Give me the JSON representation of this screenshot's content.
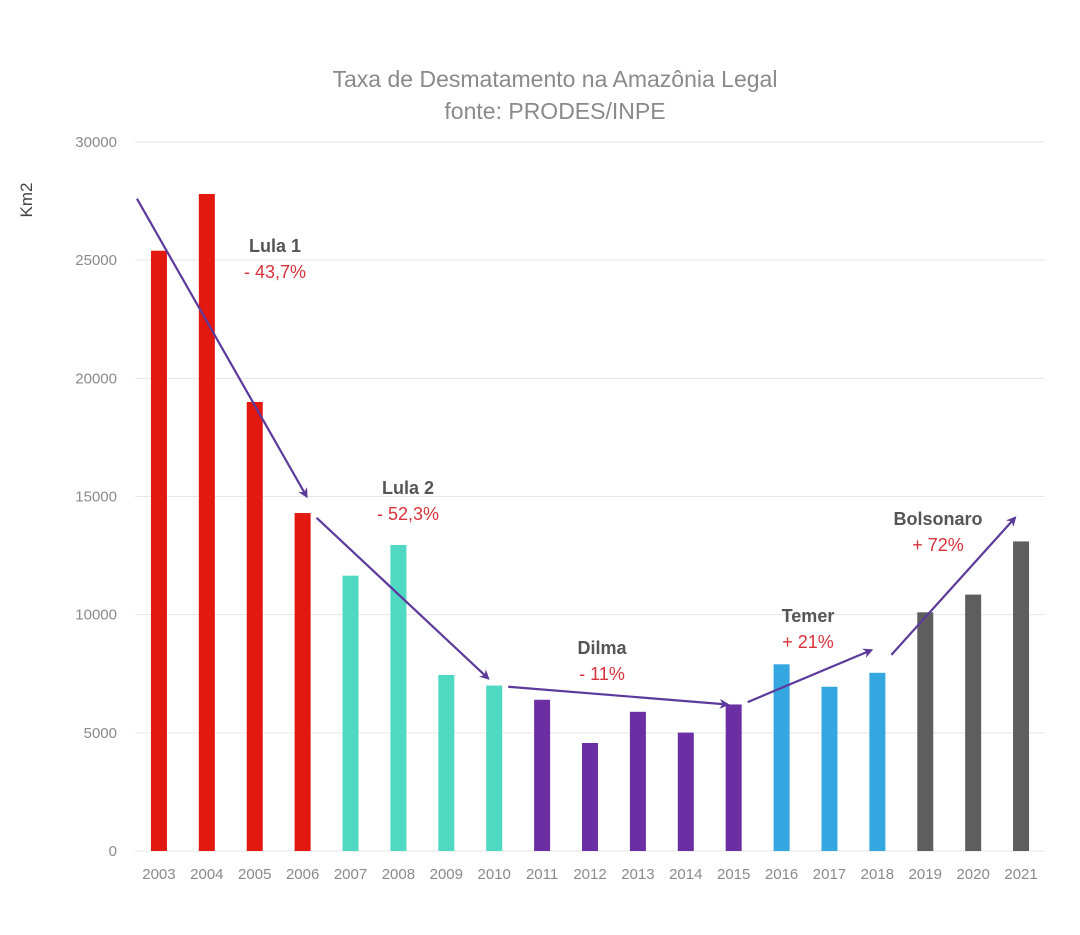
{
  "chart_data": {
    "type": "bar",
    "title": "Taxa de Desmatamento na Amazônia Legal",
    "subtitle": "fonte: PRODES/INPE",
    "ylabel": "Km2",
    "xlabel": "",
    "ylim": [
      0,
      30000
    ],
    "yticks": [
      0,
      5000,
      10000,
      15000,
      20000,
      25000,
      30000
    ],
    "grid": true,
    "categories": [
      "2003",
      "2004",
      "2005",
      "2006",
      "2007",
      "2008",
      "2009",
      "2010",
      "2011",
      "2012",
      "2013",
      "2014",
      "2015",
      "2016",
      "2017",
      "2018",
      "2019",
      "2020",
      "2021"
    ],
    "values": [
      25400,
      27800,
      19000,
      14300,
      11650,
      12950,
      7450,
      7000,
      6400,
      4570,
      5890,
      5010,
      6200,
      7900,
      6950,
      7540,
      10100,
      10850,
      13100
    ],
    "colors": [
      "#e3180f",
      "#e3180f",
      "#e3180f",
      "#e3180f",
      "#4fd9c3",
      "#4fd9c3",
      "#4fd9c3",
      "#4fd9c3",
      "#6b2fa3",
      "#6b2fa3",
      "#6b2fa3",
      "#6b2fa3",
      "#6b2fa3",
      "#35a7e0",
      "#35a7e0",
      "#35a7e0",
      "#5e5e5e",
      "#5e5e5e",
      "#5e5e5e"
    ],
    "annotations": [
      {
        "name": "Lula 1",
        "change": "- 43,7%",
        "arrow_from": [
          "2003",
          27600
        ],
        "arrow_to": [
          "2006",
          15000
        ]
      },
      {
        "name": "Lula 2",
        "change": "- 52,3%",
        "arrow_from": [
          "2006",
          14100
        ],
        "arrow_to": [
          "2010",
          7300
        ]
      },
      {
        "name": "Dilma",
        "change": "- 11%",
        "arrow_from": [
          "2010",
          6950
        ],
        "arrow_to": [
          "2015",
          6200
        ]
      },
      {
        "name": "Temer",
        "change": "+ 21%",
        "arrow_from": [
          "2015",
          6300
        ],
        "arrow_to": [
          "2018",
          8500
        ]
      },
      {
        "name": "Bolsonaro",
        "change": "+ 72%",
        "arrow_from": [
          "2018",
          8300
        ],
        "arrow_to": [
          "2021",
          14100
        ]
      }
    ],
    "annotation_label_color": "#555555",
    "annotation_change_color": "#d8323a",
    "arrow_color": "#5b3a9b"
  }
}
